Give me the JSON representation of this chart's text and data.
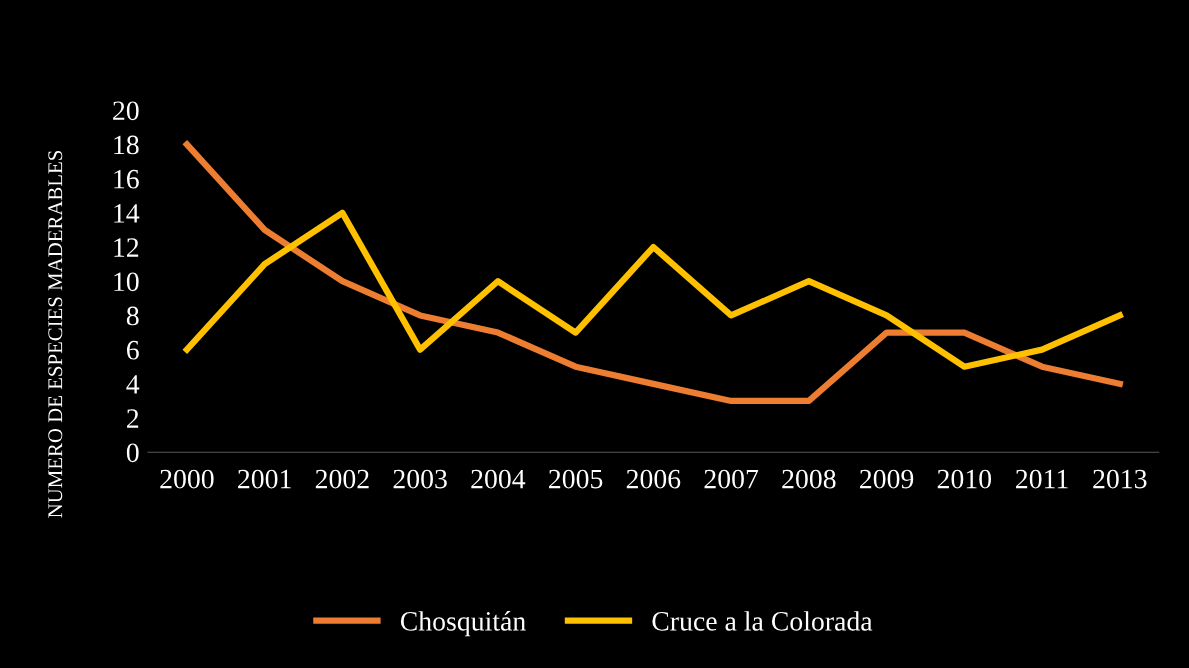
{
  "chart_data": {
    "type": "line",
    "ylabel": "NUMERO DE ESPECIES MADERABLES",
    "categories": [
      "2000",
      "2001",
      "2002",
      "2003",
      "2004",
      "2005",
      "2006",
      "2007",
      "2008",
      "2009",
      "2010",
      "2011",
      "2013"
    ],
    "series": [
      {
        "name": "Chosquitán",
        "color": "#ed7d31",
        "values": [
          18,
          13,
          10,
          8,
          7,
          5,
          4,
          3,
          3,
          7,
          7,
          5,
          4
        ]
      },
      {
        "name": "Cruce a la Colorada",
        "color": "#ffc000",
        "values": [
          6,
          11,
          14,
          6,
          10,
          7,
          12,
          8,
          10,
          8,
          5,
          6,
          8
        ]
      }
    ],
    "ylim": [
      0,
      20
    ],
    "yticks": [
      0,
      2,
      4,
      6,
      8,
      10,
      12,
      14,
      16,
      18,
      20
    ],
    "grid": false,
    "legend": "bottom",
    "marker": "none",
    "line_style": "solid"
  }
}
